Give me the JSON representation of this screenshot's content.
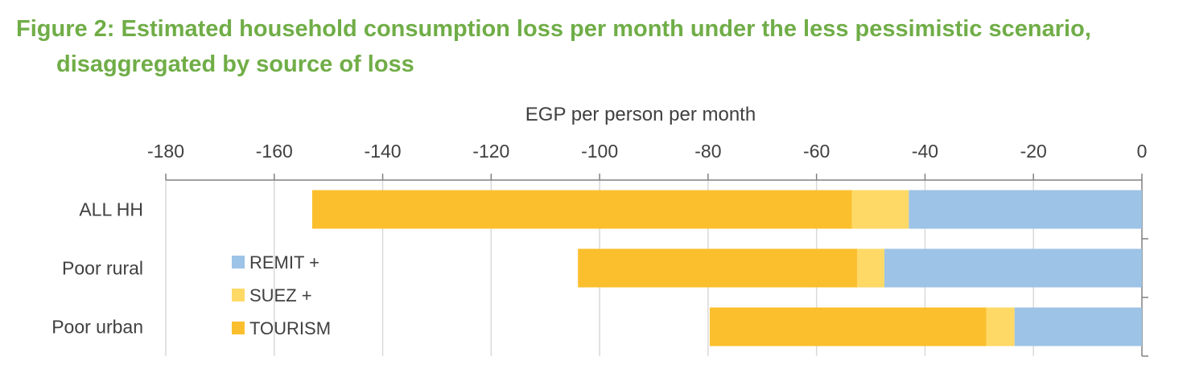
{
  "title": {
    "line1": "Figure 2: Estimated household consumption loss per month under the less pessimistic scenario,",
    "line2": "disaggregated by source of loss"
  },
  "chart_data": {
    "type": "bar",
    "orientation": "horizontal",
    "stacked": true,
    "xlabel": "EGP per person per month",
    "ylabel": "",
    "xlim": [
      -180,
      0
    ],
    "xticks": [
      -180,
      -160,
      -140,
      -120,
      -100,
      -80,
      -60,
      -40,
      -20,
      0
    ],
    "categories": [
      "ALL HH",
      "Poor rural",
      "Poor urban"
    ],
    "series": [
      {
        "name": "REMIT +",
        "values": [
          -43,
          -47.5,
          -23.5
        ],
        "color": "#9DC3E6"
      },
      {
        "name": "SUEZ +",
        "values": [
          -10.5,
          -5,
          -5.2
        ],
        "color": "#FFD966"
      },
      {
        "name": "TOURISM",
        "values": [
          -99.5,
          -51.5,
          -51
        ],
        "color": "#FBBF2E"
      }
    ],
    "grid": true,
    "axis_position": "top",
    "legend_position": "inside-left"
  }
}
